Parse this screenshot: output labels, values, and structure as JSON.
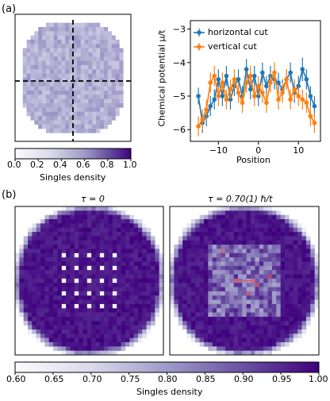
{
  "panel_a": {
    "label": "(a)",
    "colorbar": {
      "ticks": [
        "0.0",
        "0.2",
        "0.4",
        "0.6",
        "0.8",
        "1.0"
      ],
      "label": "Singles density",
      "range": [
        0.0,
        1.0
      ]
    }
  },
  "panel_b": {
    "label": "(b)",
    "left_title": "τ = 0",
    "right_title": "τ = 0.70(1) ℏ/t",
    "colorbar": {
      "ticks": [
        "0.60",
        "0.65",
        "0.70",
        "0.75",
        "0.80",
        "0.85",
        "0.90",
        "0.95",
        "1.00"
      ],
      "label": "Singles density",
      "range": [
        0.6,
        1.0
      ]
    }
  },
  "colors": {
    "horizontal": "#1f77b4",
    "vertical": "#ff7f0e",
    "cmap_low": "#fcfbfd",
    "cmap_high": "#3f007d",
    "highlight": "#e8585a"
  },
  "chart_data": {
    "type": "line",
    "xlabel": "Position",
    "ylabel": "Chemical potential μ/t",
    "xlim": [
      -17,
      15.5
    ],
    "ylim": [
      -6.35,
      -2.75
    ],
    "xticks": [
      -10,
      0,
      10
    ],
    "yticks": [
      -6,
      -5,
      -4,
      -3
    ],
    "legend_position": "top-right",
    "series": [
      {
        "name": "horizontal cut",
        "color": "#1f77b4",
        "x": [
          -15,
          -14,
          -13,
          -12,
          -11,
          -10,
          -9,
          -8,
          -7,
          -6,
          -5,
          -4,
          -3,
          -2,
          -1,
          0,
          1,
          2,
          3,
          4,
          5,
          6,
          7,
          8,
          9,
          10,
          11,
          12,
          13,
          14
        ],
        "y": [
          -5.0,
          -5.8,
          -5.6,
          -5.3,
          -5.1,
          -4.5,
          -5.0,
          -4.4,
          -5.1,
          -4.7,
          -4.5,
          -5.0,
          -4.2,
          -4.8,
          -4.4,
          -5.0,
          -4.3,
          -4.7,
          -4.4,
          -4.5,
          -4.6,
          -4.8,
          -4.5,
          -4.3,
          -4.9,
          -4.7,
          -4.2,
          -4.5,
          -5.0,
          -5.3
        ],
        "err": [
          0.25,
          0.3,
          0.3,
          0.3,
          0.3,
          0.3,
          0.3,
          0.3,
          0.3,
          0.3,
          0.3,
          0.3,
          0.3,
          0.3,
          0.3,
          0.3,
          0.3,
          0.3,
          0.3,
          0.3,
          0.3,
          0.3,
          0.3,
          0.3,
          0.3,
          0.3,
          0.35,
          0.3,
          0.3,
          0.3
        ]
      },
      {
        "name": "vertical cut",
        "color": "#ff7f0e",
        "x": [
          -15,
          -14,
          -13,
          -12,
          -11,
          -10,
          -9,
          -8,
          -7,
          -6,
          -5,
          -4,
          -3,
          -2,
          -1,
          0,
          1,
          2,
          3,
          4,
          5,
          6,
          7,
          8,
          9,
          10,
          11,
          12,
          13,
          14
        ],
        "y": [
          -5.9,
          -5.7,
          -5.4,
          -4.6,
          -4.4,
          -5.0,
          -4.6,
          -5.1,
          -4.8,
          -4.5,
          -4.9,
          -5.2,
          -4.6,
          -4.4,
          -5.0,
          -4.7,
          -4.9,
          -5.2,
          -4.6,
          -4.3,
          -5.1,
          -4.9,
          -4.5,
          -5.1,
          -4.8,
          -5.0,
          -5.1,
          -5.2,
          -5.6,
          -5.8
        ],
        "err": [
          0.3,
          0.3,
          0.3,
          0.3,
          0.3,
          0.3,
          0.3,
          0.3,
          0.3,
          0.3,
          0.3,
          0.3,
          0.3,
          0.3,
          0.3,
          0.3,
          0.3,
          0.3,
          0.3,
          0.3,
          0.3,
          0.3,
          0.3,
          0.3,
          0.3,
          0.3,
          0.3,
          0.3,
          0.3,
          0.3
        ]
      }
    ]
  }
}
